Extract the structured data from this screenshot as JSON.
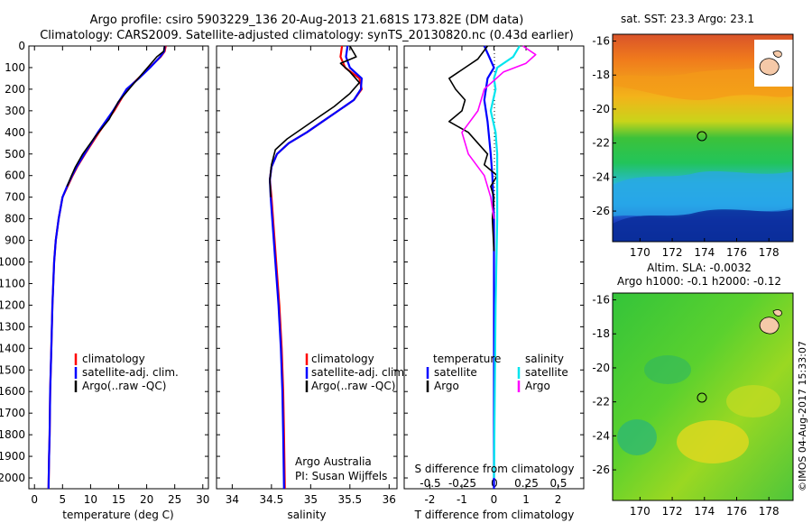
{
  "header": {
    "line1": "Argo profile: csiro 5903229_136 20-Aug-2013 21.681S 173.82E (DM data)",
    "line2": "Climatology: CARS2009. Satellite-adjusted climatology: synTS_20130820.nc (0.43d earlier)"
  },
  "colors": {
    "climatology": "#ff0000",
    "satellite": "#0000ff",
    "argo": "#000000",
    "salinity_sat": "#00e5ee",
    "salinity_argo": "#ff00ff"
  },
  "chart_data": [
    {
      "type": "line",
      "id": "temperature",
      "xlabel": "temperature (deg C)",
      "ylabel": "",
      "xlim": [
        -1,
        31
      ],
      "ylim": [
        2050,
        0
      ],
      "xticks": [
        0,
        5,
        10,
        15,
        20,
        25,
        30
      ],
      "yticks": [
        0,
        100,
        200,
        300,
        400,
        500,
        600,
        700,
        800,
        900,
        1000,
        1100,
        1200,
        1300,
        1400,
        1500,
        1600,
        1700,
        1800,
        1900,
        2000
      ],
      "legend": [
        "climatology",
        "satellite-adj. clim.",
        "Argo(..raw -QC)"
      ],
      "series": [
        {
          "name": "climatology",
          "x": [
            23.4,
            23.2,
            22.5,
            20.5,
            18.5,
            16.5,
            14.2,
            11.5,
            9.0,
            7.6,
            6.8,
            5.9,
            5.0,
            4.3,
            3.8,
            3.5,
            3.2,
            3.0,
            2.8,
            2.7,
            2.6,
            2.5
          ],
          "y": [
            0,
            25,
            50,
            100,
            150,
            200,
            300,
            400,
            500,
            560,
            600,
            650,
            700,
            800,
            900,
            1000,
            1200,
            1400,
            1600,
            1800,
            1900,
            2050
          ]
        },
        {
          "name": "satellite-adj. clim.",
          "x": [
            23.2,
            23.1,
            22.4,
            20.6,
            18.6,
            16.4,
            14.0,
            11.3,
            8.9,
            7.5,
            6.7,
            5.8,
            5.0,
            4.3,
            3.8,
            3.5,
            3.2,
            3.0,
            2.8,
            2.7,
            2.6,
            2.5
          ],
          "y": [
            0,
            25,
            50,
            100,
            150,
            200,
            300,
            400,
            500,
            560,
            600,
            650,
            700,
            800,
            900,
            1000,
            1200,
            1400,
            1600,
            1800,
            1900,
            2050
          ]
        },
        {
          "name": "Argo(..raw -QC)",
          "x": [
            23.2,
            23.0,
            21.8,
            19.5,
            17.5,
            14.9,
            13.3,
            10.8,
            8.6,
            7.3,
            6.6,
            5.8
          ],
          "y": [
            0,
            25,
            50,
            120,
            180,
            260,
            340,
            420,
            500,
            560,
            600,
            650
          ]
        }
      ]
    },
    {
      "type": "line",
      "id": "salinity",
      "xlabel": "salinity",
      "ylabel": "",
      "xlim": [
        33.8,
        36.1
      ],
      "ylim": [
        2050,
        0
      ],
      "xticks": [
        34,
        34.5,
        35,
        35.5,
        36
      ],
      "legend": [
        "climatology",
        "satellite-adj. clim.",
        "Argo(..raw -QC)"
      ],
      "annotation": [
        "Argo Australia",
        "PI: Susan Wijffels"
      ],
      "series": [
        {
          "name": "climatology",
          "x": [
            35.4,
            35.38,
            35.44,
            35.62,
            35.65,
            35.55,
            35.35,
            35.15,
            34.95,
            34.72,
            34.57,
            34.5,
            34.48,
            34.5,
            34.53,
            34.56,
            34.6,
            34.63,
            34.65,
            34.66,
            34.67
          ],
          "y": [
            0,
            50,
            100,
            150,
            200,
            250,
            300,
            350,
            400,
            450,
            500,
            560,
            620,
            700,
            850,
            1000,
            1200,
            1400,
            1600,
            1800,
            2050
          ]
        },
        {
          "name": "satellite-adj. clim.",
          "x": [
            35.47,
            35.45,
            35.5,
            35.65,
            35.64,
            35.55,
            35.35,
            35.15,
            34.95,
            34.72,
            34.57,
            34.5,
            34.48,
            34.49,
            34.52,
            34.55,
            34.59,
            34.62,
            34.64,
            34.65,
            34.66
          ],
          "y": [
            0,
            50,
            100,
            150,
            200,
            250,
            300,
            350,
            400,
            450,
            500,
            560,
            620,
            700,
            850,
            1000,
            1200,
            1400,
            1600,
            1800,
            2050
          ]
        },
        {
          "name": "Argo(..raw -QC)",
          "x": [
            35.5,
            35.58,
            35.38,
            35.5,
            35.62,
            35.5,
            35.3,
            35.1,
            34.9,
            34.7,
            34.55,
            34.5,
            34.48,
            34.49
          ],
          "y": [
            0,
            50,
            80,
            120,
            170,
            220,
            280,
            330,
            380,
            430,
            480,
            550,
            620,
            700
          ]
        }
      ]
    },
    {
      "type": "line",
      "id": "difference",
      "xlabel": "T difference from climatology",
      "top_xlabel": "S difference from climatology",
      "xlim": [
        -2.8,
        2.8
      ],
      "ylim": [
        2050,
        0
      ],
      "xticks": [
        -2,
        -1,
        0,
        1,
        2
      ],
      "top_ticks": [
        -0.5,
        -0.25,
        0,
        0.25,
        0.5
      ],
      "legend_left": [
        "temperature",
        "satellite",
        "Argo"
      ],
      "legend_right": [
        "salinity",
        "satellite",
        "Argo"
      ],
      "series": [
        {
          "name": "temperature satellite",
          "x": [
            -0.3,
            -0.15,
            0.0,
            -0.2,
            -0.3,
            -0.2,
            -0.1,
            -0.05,
            0.0,
            0.0,
            0.0,
            0.0,
            0.0
          ],
          "y": [
            0,
            50,
            100,
            150,
            250,
            350,
            500,
            600,
            800,
            1000,
            1400,
            1800,
            2050
          ]
        },
        {
          "name": "temperature Argo",
          "x": [
            -0.2,
            -0.5,
            -0.9,
            -1.4,
            -1.2,
            -0.9,
            -1.0,
            -1.4,
            -0.8,
            -0.5,
            -0.2,
            -0.3,
            0.1,
            -0.1,
            0.0,
            -0.05,
            0.0
          ],
          "y": [
            0,
            60,
            100,
            150,
            200,
            250,
            300,
            350,
            400,
            450,
            500,
            550,
            600,
            650,
            700,
            800,
            950
          ]
        },
        {
          "name": "salinity satellite",
          "x": [
            0.8,
            0.6,
            0.1,
            0.0,
            0.05,
            -0.1,
            0.05,
            0.1,
            0.1,
            0.05,
            0.0
          ],
          "y": [
            0,
            50,
            100,
            150,
            200,
            300,
            400,
            500,
            800,
            1200,
            2000
          ]
        },
        {
          "name": "salinity Argo",
          "x": [
            0.9,
            1.3,
            1.0,
            0.3,
            -0.3,
            -0.5,
            -1.0,
            -0.8,
            -0.3,
            -0.1,
            0.0
          ],
          "y": [
            0,
            40,
            80,
            120,
            200,
            300,
            400,
            500,
            600,
            700,
            800
          ]
        }
      ]
    }
  ],
  "maps": {
    "top": {
      "title": "sat. SST: 23.3 Argo: 23.1",
      "yticks": [
        -16,
        -18,
        -20,
        -22,
        -24,
        -26
      ],
      "xticks": [
        170,
        172,
        174,
        176,
        178
      ]
    },
    "bottom": {
      "title_line1": "Altim. SLA: -0.0032",
      "title_line2": "Argo h1000: -0.1 h2000: -0.12",
      "yticks": [
        -16,
        -18,
        -20,
        -22,
        -24,
        -26
      ],
      "xticks": [
        170,
        172,
        174,
        176,
        178
      ]
    }
  },
  "stamp": "©IMOS 04-Aug-2017 15:33:07"
}
